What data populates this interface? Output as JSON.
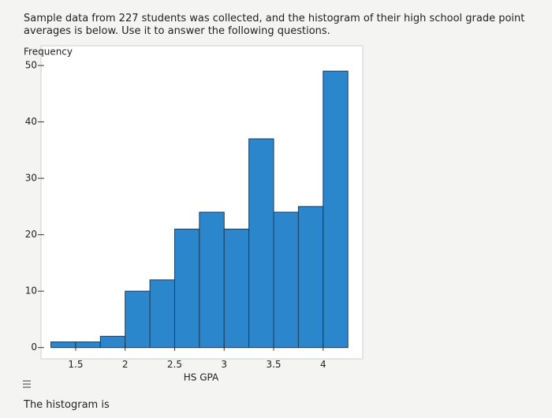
{
  "question": "Sample data from 227 students was collected, and the histogram of their high school grade point averages is below.  Use it to answer the following questions.",
  "prompt": "The histogram is",
  "chart_data": {
    "type": "histogram",
    "ylabel": "Frequency",
    "xlabel": "HS GPA",
    "bins": [
      1.25,
      1.5,
      1.75,
      2,
      2.25,
      2.5,
      2.75,
      3,
      3.25,
      3.5,
      3.75,
      4,
      4.25
    ],
    "values": [
      1,
      1,
      2,
      10,
      12,
      21,
      24,
      21,
      37,
      24,
      25,
      49
    ],
    "color": "#2b86cc",
    "xlim": [
      1.15,
      4.4
    ],
    "ylim": [
      -2,
      53.5
    ],
    "xticks": [
      1.5,
      2,
      2.5,
      3,
      3.5,
      4
    ],
    "yticks": [
      0,
      10,
      20,
      30,
      40,
      50
    ]
  }
}
